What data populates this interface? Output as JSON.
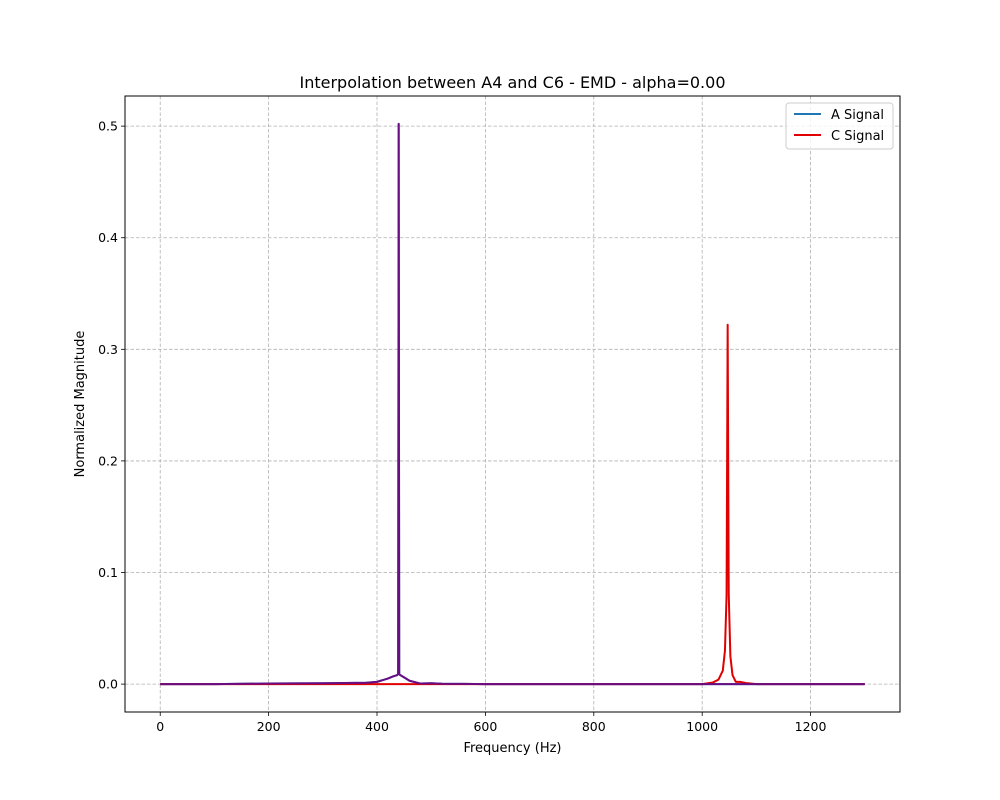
{
  "chart_data": {
    "type": "line",
    "title": "Interpolation between A4 and C6 - EMD - alpha=0.00",
    "xlabel": "Frequency (Hz)",
    "ylabel": "Normalized Magnitude",
    "xlim": [
      -65,
      1365
    ],
    "ylim": [
      -0.025,
      0.527
    ],
    "xticks": [
      0,
      200,
      400,
      600,
      800,
      1000,
      1200
    ],
    "xtick_labels": [
      "0",
      "200",
      "400",
      "600",
      "800",
      "1000",
      "1200"
    ],
    "yticks": [
      0.0,
      0.1,
      0.2,
      0.3,
      0.4,
      0.5
    ],
    "ytick_labels": [
      "0.0",
      "0.1",
      "0.2",
      "0.3",
      "0.4",
      "0.5"
    ],
    "grid": true,
    "grid_style": "dashed",
    "legend_position": "top-right",
    "series": [
      {
        "name": "A Signal",
        "color": "#1f77b4",
        "x": [
          0,
          100,
          200,
          300,
          380,
          400,
          420,
          430,
          437,
          439,
          440,
          441,
          443,
          450,
          460,
          480,
          500,
          520,
          560,
          600,
          800,
          1000,
          1200,
          1300
        ],
        "y": [
          0,
          0,
          0.0005,
          0.0008,
          0.0012,
          0.002,
          0.005,
          0.007,
          0.008,
          0.009,
          0.502,
          0.009,
          0.008,
          0.006,
          0.003,
          0.0005,
          0.0008,
          0.0003,
          0.0002,
          0,
          0,
          0,
          0,
          0
        ]
      },
      {
        "name": "C Signal",
        "color": "#e00000",
        "x": [
          0,
          400,
          800,
          1000,
          1020,
          1030,
          1038,
          1042,
          1045,
          1046,
          1047,
          1048,
          1049,
          1052,
          1056,
          1062,
          1070,
          1080,
          1100,
          1200,
          1300
        ],
        "y": [
          0,
          0,
          0,
          0,
          0.0015,
          0.004,
          0.012,
          0.03,
          0.08,
          0.2,
          0.322,
          0.2,
          0.08,
          0.025,
          0.008,
          0.002,
          0.002,
          0.001,
          0,
          0,
          0
        ]
      },
      {
        "color": "#6a0d83",
        "x": [
          0,
          100,
          200,
          300,
          380,
          400,
          420,
          430,
          437,
          439,
          440,
          441,
          443,
          450,
          460,
          480,
          500,
          520,
          560,
          600,
          800,
          1000,
          1200,
          1300
        ],
        "y": [
          0,
          0,
          0.0005,
          0.0008,
          0.0012,
          0.002,
          0.005,
          0.007,
          0.008,
          0.009,
          0.502,
          0.009,
          0.008,
          0.006,
          0.003,
          0.0005,
          0.0008,
          0.0003,
          0.0002,
          0,
          0,
          0,
          0,
          0
        ]
      }
    ]
  }
}
